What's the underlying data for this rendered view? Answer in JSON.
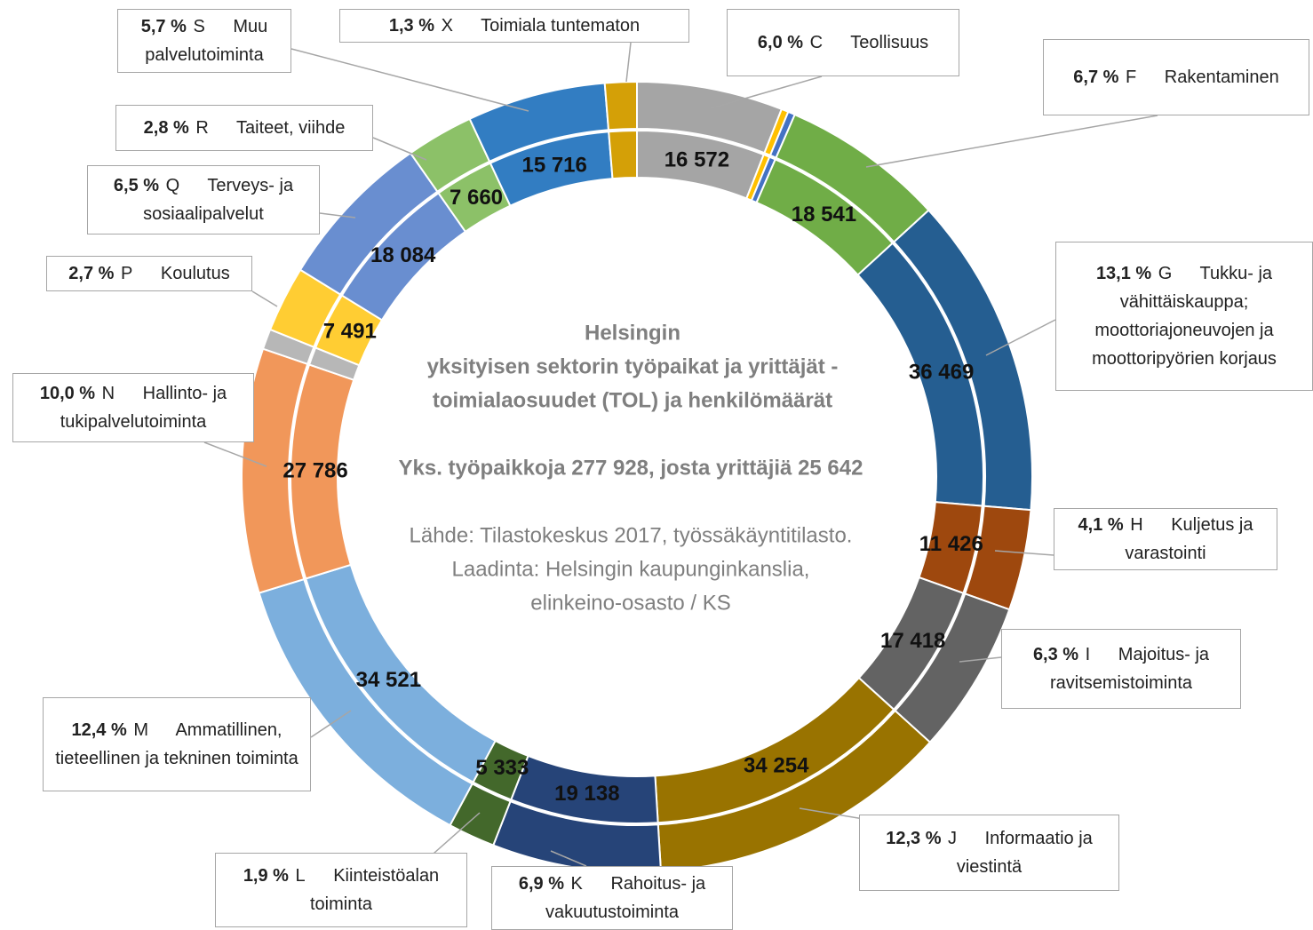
{
  "chart_data": {
    "type": "donut",
    "title_lines": [
      "Helsingin",
      "yksityisen sektorin työpaikat ja yrittäjät -",
      "toimialaosuudet (TOL) ja henkilömäärät"
    ],
    "subtitle": "Yks. työpaikkoja 277 928, josta yrittäjiä 25 642",
    "source_lines": [
      "Lähde: Tilastokeskus 2017, työssäkäyntitilasto.",
      "Laadinta: Helsingin kaupunginkanslia,",
      "elinkeino-osasto / KS"
    ],
    "codes": [
      "C",
      null,
      null,
      "F",
      "G",
      "H",
      "I",
      "J",
      "K",
      "L",
      "M",
      "N",
      null,
      "P",
      "Q",
      "R",
      "S",
      "X"
    ],
    "names": [
      "Teollisuus",
      null,
      null,
      "Rakentaminen",
      "Tukku- ja vähittäiskauppa; moottoriajoneuvojen ja moottoripyörien korjaus",
      "Kuljetus ja varastointi",
      "Majoitus- ja ravitsemistoiminta",
      "Informaatio ja viestintä",
      "Rahoitus- ja vakuutustoiminta",
      "Kiinteistöalan toiminta",
      "Ammatillinen, tieteellinen ja tekninen toiminta",
      "Hallinto- ja tukipalvelutoiminta",
      null,
      "Koulutus",
      "Terveys- ja sosiaalipalvelut",
      "Taiteet, viihde",
      "Muu palvelutoiminta",
      "Toimiala tuntematon"
    ],
    "values": [
      16572,
      800,
      800,
      18541,
      36469,
      11426,
      17418,
      34254,
      19138,
      5333,
      34521,
      27786,
      2306,
      7491,
      18084,
      7660,
      15716,
      3613
    ],
    "value_labels": [
      "16 572",
      null,
      null,
      "18 541",
      "36 469",
      "11 426",
      "17 418",
      "34 254",
      "19 138",
      "5 333",
      "34 521",
      "27 786",
      null,
      "7 491",
      "18 084",
      "7 660",
      "15 716",
      null
    ],
    "percents": [
      6.0,
      null,
      null,
      6.7,
      13.1,
      4.1,
      6.3,
      12.3,
      6.9,
      1.9,
      12.4,
      10.0,
      null,
      2.7,
      6.5,
      2.8,
      5.7,
      1.3
    ],
    "percent_labels": [
      "6,0 %",
      null,
      null,
      "6,7 %",
      "13,1 %",
      "4,1 %",
      "6,3 %",
      "12,3 %",
      "6,9 %",
      "1,9 %",
      "12,4 %",
      "10,0 %",
      null,
      "2,7 %",
      "6,5 %",
      "2,8 %",
      "5,7 %",
      "1,3 %"
    ],
    "colors": [
      "#a5a5a5",
      "#ffc000",
      "#4472c4",
      "#70ad47",
      "#255e91",
      "#9e480e",
      "#636363",
      "#997300",
      "#264478",
      "#43682b",
      "#7cafdd",
      "#f1975a",
      "#b7b7b7",
      "#ffcd33",
      "#698ed0",
      "#8cc168",
      "#327dc2",
      "#d4a007"
    ]
  }
}
